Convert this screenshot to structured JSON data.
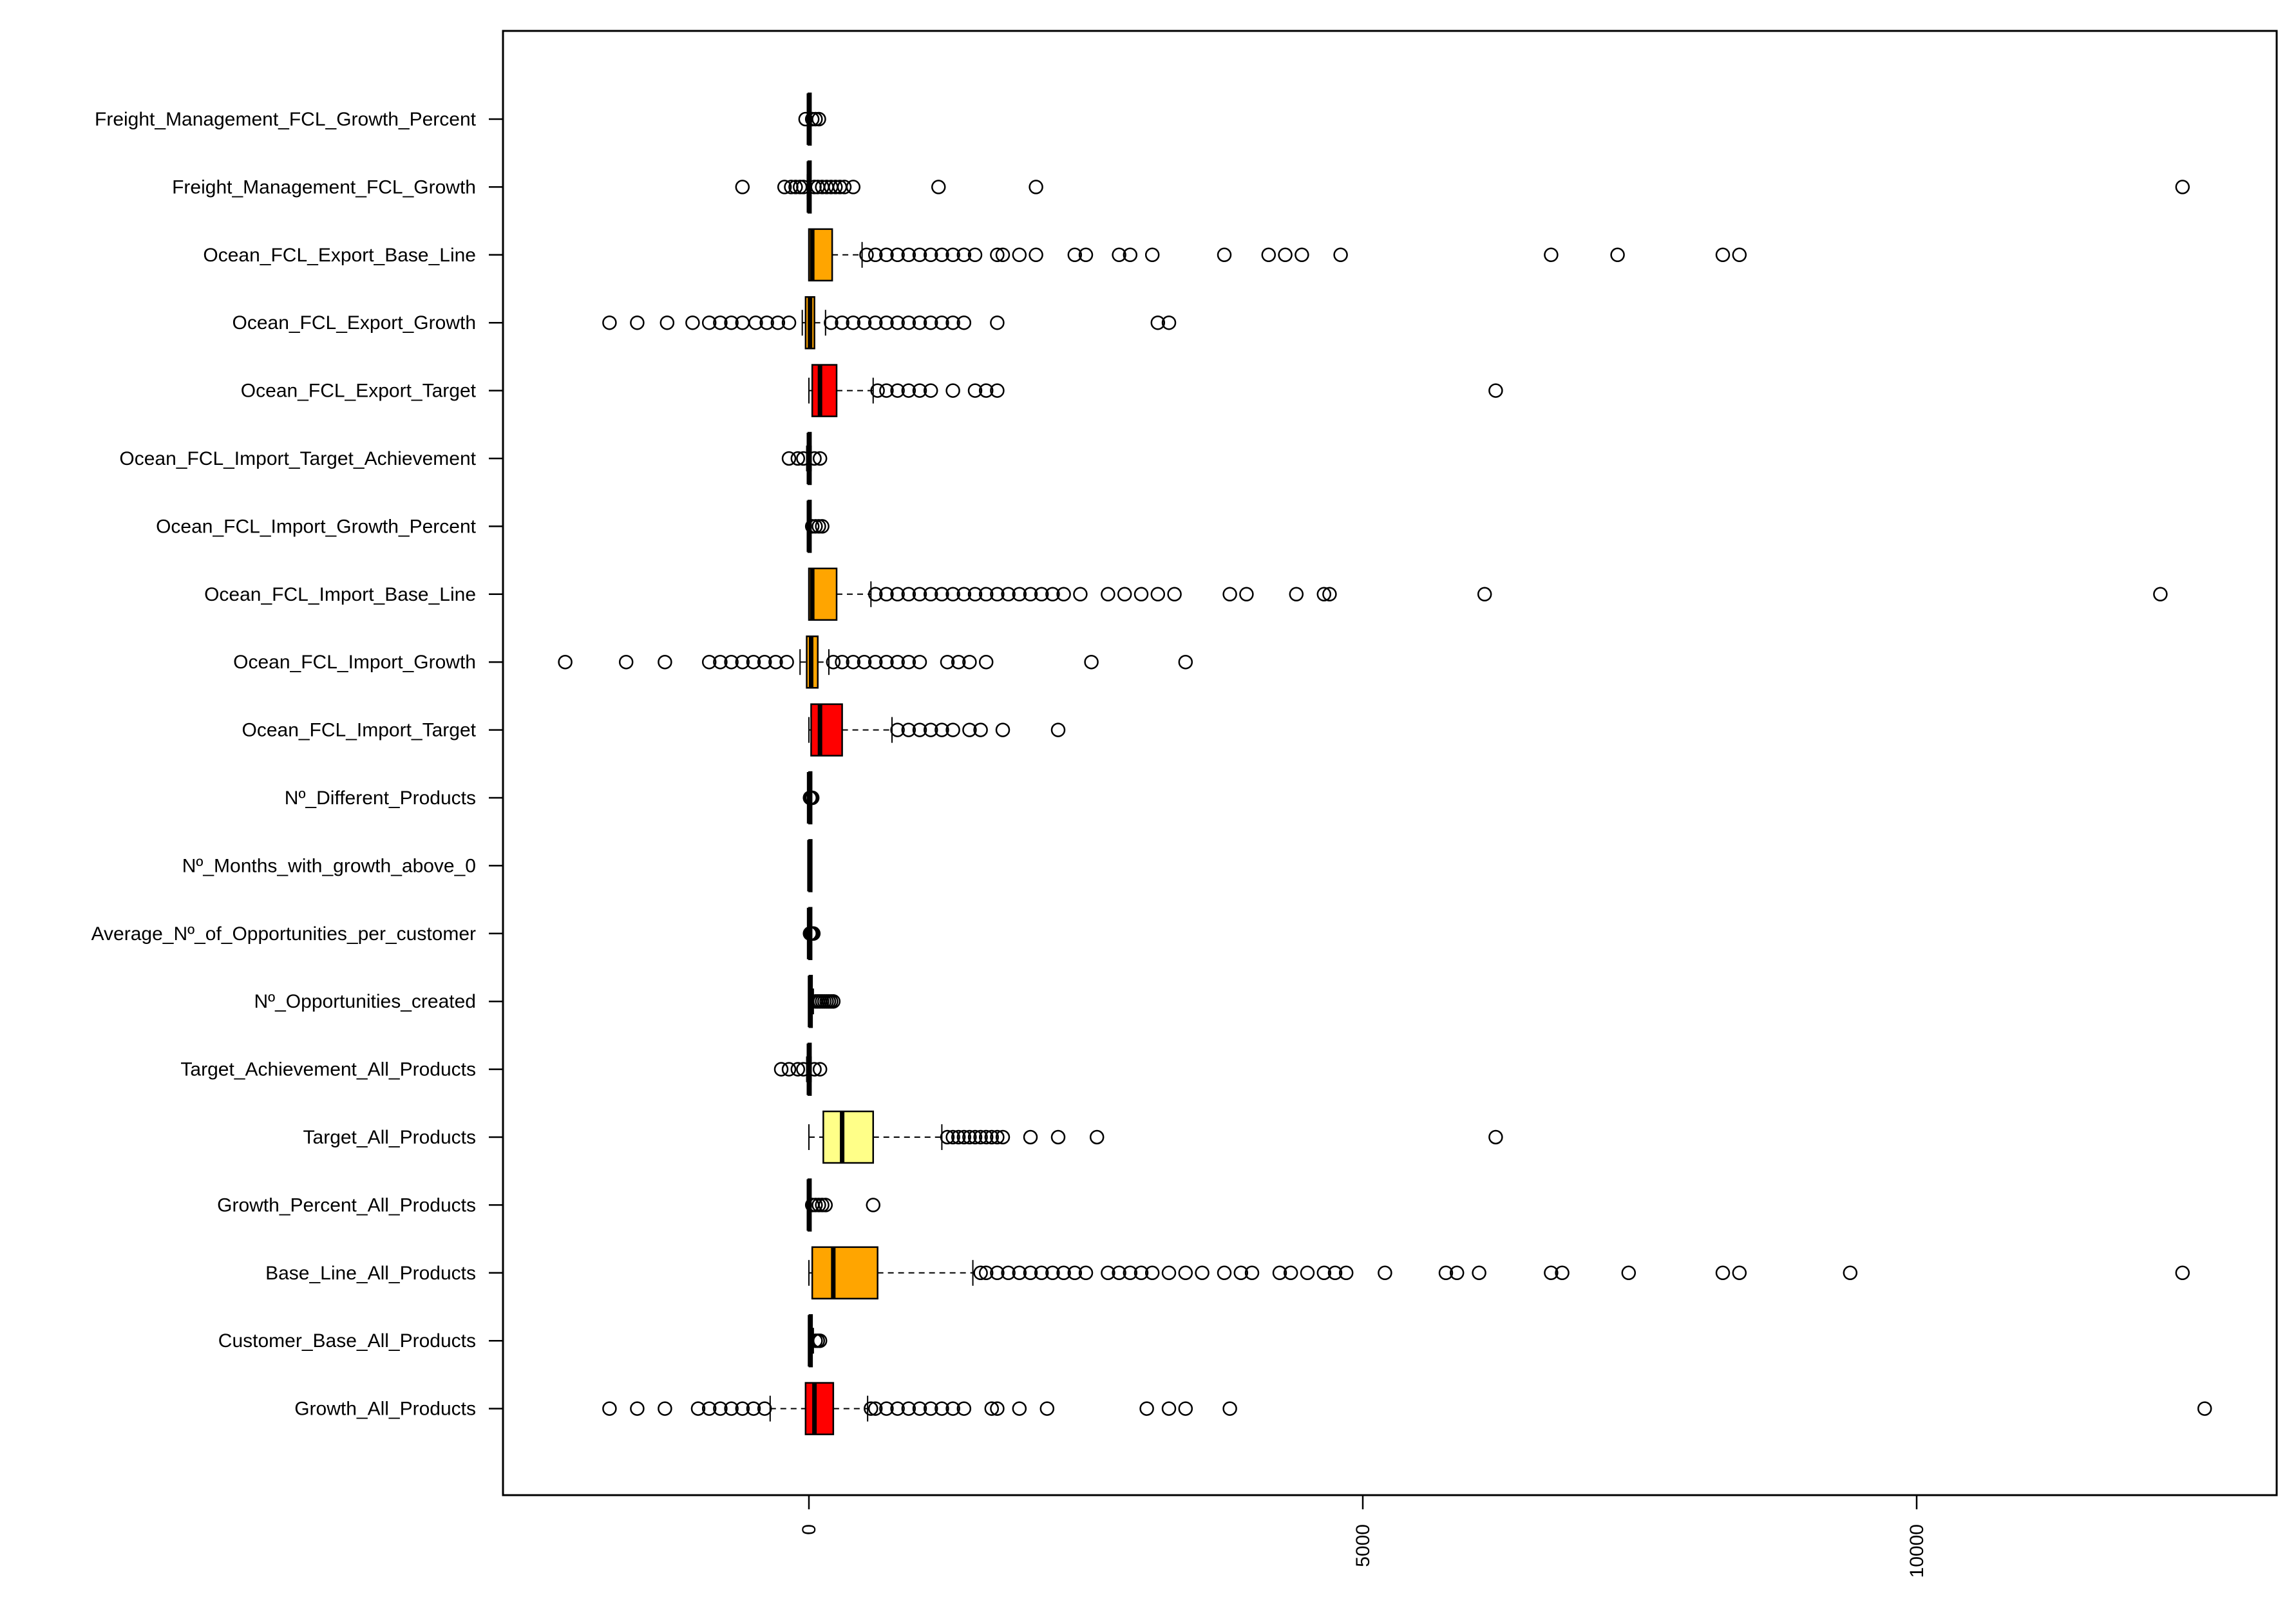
{
  "chart_data": {
    "type": "boxplot",
    "orientation": "horizontal",
    "title": "",
    "xlabel": "",
    "ylabel": "",
    "xlim": [
      -2800,
      12900
    ],
    "xticks": [
      0,
      5000,
      10000
    ],
    "xtick_labels": [
      "0",
      "5000",
      "10000"
    ],
    "grid": false,
    "legend": "none",
    "series": [
      {
        "name": "Freight_Management_FCL_Growth_Percent",
        "color": "#ffffff",
        "min": -10,
        "q1": -5,
        "median": 0,
        "q3": 5,
        "max": 10,
        "outliers": [
          -30,
          30,
          60,
          90
        ]
      },
      {
        "name": "Freight_Management_FCL_Growth",
        "color": "#ffffff",
        "min": -15,
        "q1": -5,
        "median": 0,
        "q3": 5,
        "max": 15,
        "outliers": [
          -600,
          -220,
          -160,
          -120,
          -80,
          -50,
          50,
          80,
          120,
          160,
          200,
          240,
          280,
          320,
          400,
          1170,
          2050,
          12400
        ]
      },
      {
        "name": "Ocean_FCL_Export_Base_Line",
        "color": "#ffa500",
        "min": 0,
        "q1": 0,
        "median": 30,
        "q3": 210,
        "max": 480,
        "outliers": [
          520,
          600,
          700,
          800,
          900,
          1000,
          1100,
          1200,
          1300,
          1400,
          1500,
          1700,
          1750,
          1900,
          2050,
          2400,
          2500,
          2800,
          2900,
          3100,
          3750,
          4150,
          4300,
          4450,
          4800,
          6700,
          7300,
          8250,
          8400
        ]
      },
      {
        "name": "Ocean_FCL_Export_Growth",
        "color": "#ffa500",
        "min": -60,
        "q1": -30,
        "median": 10,
        "q3": 50,
        "max": 150,
        "outliers": [
          -1800,
          -1550,
          -1280,
          -1050,
          -900,
          -800,
          -700,
          -600,
          -480,
          -380,
          -280,
          -180,
          200,
          300,
          400,
          500,
          600,
          700,
          800,
          900,
          1000,
          1100,
          1200,
          1300,
          1400,
          1700,
          3150,
          3250
        ]
      },
      {
        "name": "Ocean_FCL_Export_Target",
        "color": "#ff0000",
        "min": 0,
        "q1": 30,
        "median": 100,
        "q3": 250,
        "max": 580,
        "outliers": [
          620,
          700,
          800,
          900,
          1000,
          1100,
          1300,
          1500,
          1600,
          1700,
          6200
        ]
      },
      {
        "name": "Ocean_FCL_Import_Target_Achievement",
        "color": "#ffffff",
        "min": -20,
        "q1": -5,
        "median": 0,
        "q3": 5,
        "max": 20,
        "outliers": [
          -180,
          -100,
          -50,
          50,
          100
        ]
      },
      {
        "name": "Ocean_FCL_Import_Growth_Percent",
        "color": "#ffffff",
        "min": -10,
        "q1": -5,
        "median": 0,
        "q3": 5,
        "max": 10,
        "outliers": [
          30,
          60,
          90,
          120
        ]
      },
      {
        "name": "Ocean_FCL_Import_Base_Line",
        "color": "#ffa500",
        "min": 0,
        "q1": 0,
        "median": 30,
        "q3": 250,
        "max": 560,
        "outliers": [
          600,
          700,
          800,
          900,
          1000,
          1100,
          1200,
          1300,
          1400,
          1500,
          1600,
          1700,
          1800,
          1900,
          2000,
          2100,
          2200,
          2300,
          2450,
          2700,
          2850,
          3000,
          3150,
          3300,
          3800,
          3950,
          4400,
          4650,
          4700,
          6100,
          12200
        ]
      },
      {
        "name": "Ocean_FCL_Import_Growth",
        "color": "#ffa500",
        "min": -80,
        "q1": -20,
        "median": 20,
        "q3": 80,
        "max": 180,
        "outliers": [
          -2200,
          -1650,
          -1300,
          -900,
          -800,
          -700,
          -600,
          -500,
          -400,
          -300,
          -200,
          220,
          300,
          400,
          500,
          600,
          700,
          800,
          900,
          1000,
          1250,
          1350,
          1450,
          1600,
          2550,
          3400
        ]
      },
      {
        "name": "Ocean_FCL_Import_Target",
        "color": "#ff0000",
        "min": 0,
        "q1": 20,
        "median": 100,
        "q3": 300,
        "max": 750,
        "outliers": [
          800,
          900,
          1000,
          1100,
          1200,
          1300,
          1450,
          1550,
          1750,
          2250
        ]
      },
      {
        "name": "Nº_Different_Products",
        "color": "#ffffff",
        "min": 0,
        "q1": 1,
        "median": 2,
        "q3": 3,
        "max": 5,
        "outliers": [
          10,
          20,
          30
        ]
      },
      {
        "name": "Nº_Months_with_growth_above_0",
        "color": "#ffffff",
        "min": 0,
        "q1": 2,
        "median": 5,
        "q3": 8,
        "max": 12,
        "outliers": []
      },
      {
        "name": "Average_Nº_of_Opportunities_per_customer",
        "color": "#ffffff",
        "min": 0,
        "q1": 1,
        "median": 2,
        "q3": 3,
        "max": 5,
        "outliers": [
          10,
          20,
          30,
          40
        ]
      },
      {
        "name": "Nº_Opportunities_created",
        "color": "#ffffff",
        "min": 0,
        "q1": 5,
        "median": 10,
        "q3": 20,
        "max": 40,
        "outliers": [
          60,
          80,
          100,
          120,
          140,
          160,
          180,
          200,
          220
        ]
      },
      {
        "name": "Target_Achievement_All_Products",
        "color": "#ffffff",
        "min": -20,
        "q1": -5,
        "median": 0,
        "q3": 5,
        "max": 20,
        "outliers": [
          -250,
          -180,
          -100,
          -50,
          50,
          100
        ]
      },
      {
        "name": "Target_All_Products",
        "color": "#ffff88",
        "min": 0,
        "q1": 130,
        "median": 300,
        "q3": 580,
        "max": 1200,
        "outliers": [
          1250,
          1300,
          1350,
          1400,
          1450,
          1500,
          1550,
          1600,
          1650,
          1700,
          1750,
          2000,
          2250,
          2600,
          6200
        ]
      },
      {
        "name": "Growth_Percent_All_Products",
        "color": "#ffffff",
        "min": -10,
        "q1": -5,
        "median": 0,
        "q3": 5,
        "max": 10,
        "outliers": [
          30,
          60,
          90,
          120,
          150,
          580
        ]
      },
      {
        "name": "Base_Line_All_Products",
        "color": "#ffa500",
        "min": 0,
        "q1": 30,
        "median": 220,
        "q3": 620,
        "max": 1480,
        "outliers": [
          1550,
          1600,
          1700,
          1800,
          1900,
          2000,
          2100,
          2200,
          2300,
          2400,
          2500,
          2700,
          2800,
          2900,
          3000,
          3100,
          3250,
          3400,
          3550,
          3750,
          3900,
          4000,
          4250,
          4350,
          4500,
          4650,
          4750,
          4850,
          5200,
          5750,
          5850,
          6050,
          6700,
          6800,
          7400,
          8250,
          8400,
          9400,
          12400
        ]
      },
      {
        "name": "Customer_Base_All_Products",
        "color": "#ffffff",
        "min": 0,
        "q1": 5,
        "median": 10,
        "q3": 20,
        "max": 40,
        "outliers": [
          60,
          80,
          100
        ]
      },
      {
        "name": "Growth_All_Products",
        "color": "#ff0000",
        "min": -350,
        "q1": -30,
        "median": 50,
        "q3": 220,
        "max": 530,
        "outliers": [
          -1800,
          -1550,
          -1300,
          -1000,
          -900,
          -800,
          -700,
          -600,
          -500,
          -400,
          560,
          600,
          700,
          800,
          900,
          1000,
          1100,
          1200,
          1300,
          1400,
          1650,
          1700,
          1900,
          2150,
          3050,
          3250,
          3400,
          3800,
          12600
        ]
      }
    ]
  }
}
